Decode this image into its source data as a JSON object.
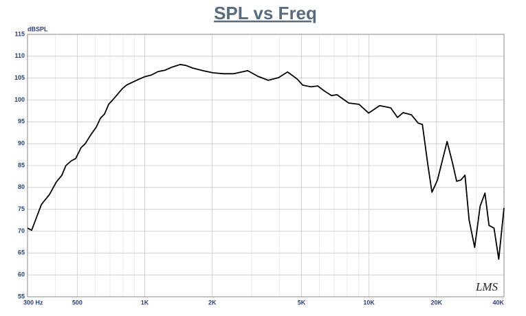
{
  "chart_data": {
    "type": "line",
    "title": "SPL vs Freq",
    "y_label": "dBSPL",
    "logo": "LMS",
    "log_x": true,
    "grid": true,
    "xlim": [
      300,
      40000
    ],
    "ylim": [
      55,
      115
    ],
    "yticks": [
      55,
      60,
      65,
      70,
      75,
      80,
      85,
      90,
      95,
      100,
      105,
      110,
      115
    ],
    "xticks": [
      {
        "value": 300,
        "label": "300  Hz"
      },
      500,
      {
        "value": 1000,
        "label": "1K"
      },
      {
        "value": 2000,
        "label": "2K"
      },
      {
        "value": 5000,
        "label": "5K"
      },
      {
        "value": 10000,
        "label": "10K"
      },
      {
        "value": 20000,
        "label": "20K"
      },
      {
        "value": 40000,
        "label": "40K"
      }
    ],
    "xminor": [
      400,
      600,
      700,
      800,
      900,
      3000,
      4000,
      6000,
      7000,
      8000,
      9000,
      30000
    ],
    "x": [
      300,
      313,
      346,
      376,
      403,
      427,
      445,
      471,
      492,
      520,
      543,
      574,
      608,
      634,
      662,
      690,
      731,
      762,
      795,
      830,
      877,
      929,
      997,
      1070,
      1148,
      1231,
      1322,
      1439,
      1524,
      1634,
      1817,
      2019,
      2245,
      2497,
      2876,
      3197,
      3555,
      3951,
      4334,
      4779,
      5060,
      5508,
      5906,
      6343,
      6807,
      7197,
      8123,
      9030,
      9960,
      11160,
      12500,
      13400,
      14200,
      15460,
      16570,
      17300,
      18300,
      19090,
      20200,
      22300,
      23600,
      24600,
      25700,
      26800,
      27950,
      29600,
      31300,
      32900,
      34300,
      36100,
      37900,
      40000
    ],
    "series": [
      {
        "name": "SPL",
        "color": "#000000",
        "values": [
          70.7,
          70.2,
          76.1,
          78.4,
          81.2,
          82.8,
          85,
          86.1,
          86.6,
          89.1,
          90,
          92,
          93.8,
          95.8,
          96.8,
          99,
          100.4,
          101.5,
          102.6,
          103.4,
          104,
          104.6,
          105.3,
          105.7,
          106.5,
          106.8,
          107.5,
          108.1,
          107.9,
          107.3,
          106.7,
          106.2,
          106,
          106,
          106.7,
          105.4,
          104.5,
          105.1,
          106.4,
          104.8,
          103.4,
          103,
          103.2,
          102,
          101,
          101.2,
          99.3,
          99,
          97,
          98.7,
          98.2,
          96,
          97.1,
          96.6,
          94.7,
          94.4,
          85.2,
          78.9,
          81.7,
          90.5,
          85.5,
          81.4,
          81.7,
          82.8,
          72.6,
          66.3,
          75.7,
          78.7,
          71.3,
          70.7,
          63.6,
          75.3
        ]
      }
    ]
  }
}
